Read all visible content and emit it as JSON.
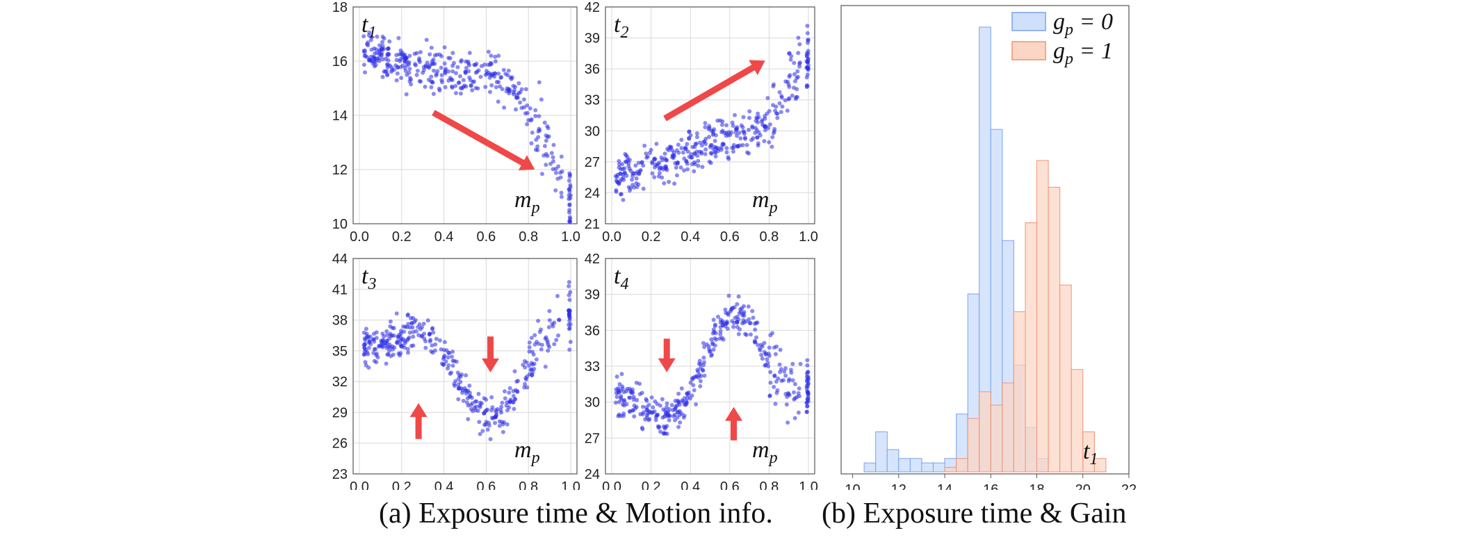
{
  "captions": {
    "a": "(a) Exposure time & Motion info.",
    "b": "(b) Exposure time & Gain"
  },
  "colors": {
    "scatter": "#2a2ae8",
    "arrow": "#f04848",
    "gp0_fill": "#cfe0fb",
    "gp0_edge": "#7aa2ea",
    "gp1_fill": "#fcd6c4",
    "gp1_edge": "#f19272",
    "legend_gp0_text": "#1414e6",
    "legend_gp1_text": "#e61414",
    "grid": "#d9d9d9",
    "frame": "#555555"
  },
  "chart_data": [
    {
      "type": "scatter",
      "name": "t1",
      "label": {
        "main": "t",
        "sub": "1"
      },
      "axis_label": {
        "main": "m",
        "sub": "p"
      },
      "xlim": [
        0,
        1
      ],
      "ylim": [
        10,
        18
      ],
      "xticks": [
        "0.0",
        "0.2",
        "0.4",
        "0.6",
        "0.8",
        "1.0"
      ],
      "yticks": [
        "10",
        "12",
        "14",
        "16",
        "18"
      ],
      "trend": {
        "x": [
          0,
          0.1,
          0.2,
          0.3,
          0.4,
          0.5,
          0.6,
          0.7,
          0.8,
          0.85,
          0.9,
          1.0
        ],
        "y": [
          16.4,
          16.2,
          16.0,
          15.8,
          15.6,
          15.5,
          15.7,
          15.2,
          14.2,
          13.5,
          12.5,
          11.0
        ]
      },
      "spread": 0.55,
      "n_points": 380,
      "arrows": [
        {
          "direction": "down-right",
          "from": [
            0.35,
            14.1
          ],
          "to": [
            0.83,
            12.0
          ]
        }
      ]
    },
    {
      "type": "scatter",
      "name": "t2",
      "label": {
        "main": "t",
        "sub": "2"
      },
      "axis_label": {
        "main": "m",
        "sub": "p"
      },
      "xlim": [
        0,
        1
      ],
      "ylim": [
        21,
        42
      ],
      "xticks": [
        "0.0",
        "0.2",
        "0.4",
        "0.6",
        "0.8",
        "1.0"
      ],
      "yticks": [
        "21",
        "24",
        "27",
        "30",
        "33",
        "36",
        "39",
        "42"
      ],
      "trend": {
        "x": [
          0,
          0.2,
          0.4,
          0.6,
          0.8,
          0.9,
          1.0
        ],
        "y": [
          25.2,
          26.5,
          28.0,
          29.3,
          30.5,
          35.0,
          37.0
        ]
      },
      "spread": 1.4,
      "n_points": 380,
      "arrows": [
        {
          "direction": "up-right",
          "from": [
            0.27,
            31.2
          ],
          "to": [
            0.78,
            36.8
          ]
        }
      ]
    },
    {
      "type": "scatter",
      "name": "t3",
      "label": {
        "main": "t",
        "sub": "3"
      },
      "axis_label": {
        "main": "m",
        "sub": "p"
      },
      "xlim": [
        0,
        1
      ],
      "ylim": [
        23,
        44
      ],
      "xticks": [
        "0.0",
        "0.2",
        "0.4",
        "0.6",
        "0.8",
        "1.0"
      ],
      "yticks": [
        "23",
        "26",
        "29",
        "32",
        "35",
        "38",
        "41",
        "44"
      ],
      "trend": {
        "x": [
          0,
          0.1,
          0.2,
          0.3,
          0.4,
          0.5,
          0.6,
          0.7,
          0.8,
          0.9,
          1.0
        ],
        "y": [
          35.5,
          35.5,
          36.3,
          37.0,
          34.8,
          31.0,
          28.0,
          29.5,
          33.5,
          37.0,
          38.5
        ]
      },
      "spread": 1.3,
      "n_points": 380,
      "arrows": [
        {
          "direction": "up",
          "x": 0.28,
          "from": 26.4,
          "to": 29.9
        },
        {
          "direction": "down",
          "x": 0.62,
          "from": 36.4,
          "to": 32.9
        }
      ]
    },
    {
      "type": "scatter",
      "name": "t4",
      "label": {
        "main": "t",
        "sub": "4"
      },
      "axis_label": {
        "main": "m",
        "sub": "p"
      },
      "xlim": [
        0,
        1
      ],
      "ylim": [
        24,
        42
      ],
      "xticks": [
        "0.0",
        "0.2",
        "0.4",
        "0.6",
        "0.8",
        "1.0"
      ],
      "yticks": [
        "24",
        "27",
        "30",
        "33",
        "36",
        "39",
        "42"
      ],
      "trend": {
        "x": [
          0,
          0.1,
          0.2,
          0.3,
          0.4,
          0.5,
          0.6,
          0.7,
          0.8,
          0.9,
          1.0
        ],
        "y": [
          30.3,
          30.0,
          29.3,
          29.0,
          30.5,
          34.5,
          37.5,
          36.5,
          33.0,
          31.0,
          31.0
        ]
      },
      "spread": 1.2,
      "n_points": 380,
      "arrows": [
        {
          "direction": "down",
          "x": 0.28,
          "from": 35.3,
          "to": 32.5
        },
        {
          "direction": "up",
          "x": 0.62,
          "from": 26.8,
          "to": 29.6
        }
      ]
    },
    {
      "type": "histogram",
      "name": "t1_by_gain",
      "axis_label": {
        "main": "t",
        "sub": "1"
      },
      "xlim": [
        9.5,
        22
      ],
      "xticks": [
        "10",
        "12",
        "14",
        "16",
        "18",
        "20",
        "22"
      ],
      "bin_width": 0.5,
      "ymax": 1.0,
      "series": [
        {
          "name": "gp0",
          "legend": {
            "main": "g",
            "sub": "p",
            "rest": " = 0"
          },
          "bin_starts": [
            10.5,
            11,
            11.5,
            12,
            12.5,
            13,
            13.5,
            14,
            14.5,
            15,
            15.5,
            16,
            16.5,
            17,
            17.5,
            18
          ],
          "heights": [
            0.02,
            0.09,
            0.05,
            0.03,
            0.03,
            0.02,
            0.02,
            0.03,
            0.13,
            0.4,
            1.0,
            0.77,
            0.52,
            0.24,
            0.1,
            0.03
          ]
        },
        {
          "name": "gp1",
          "legend": {
            "main": "g",
            "sub": "p",
            "rest": " = 1"
          },
          "bin_starts": [
            14,
            14.5,
            15,
            15.5,
            16,
            16.5,
            17,
            17.5,
            18,
            18.5,
            19,
            19.5,
            20,
            20.5
          ],
          "heights": [
            0.01,
            0.03,
            0.12,
            0.18,
            0.15,
            0.2,
            0.36,
            0.56,
            0.7,
            0.64,
            0.42,
            0.23,
            0.09,
            0.03
          ]
        }
      ]
    }
  ]
}
